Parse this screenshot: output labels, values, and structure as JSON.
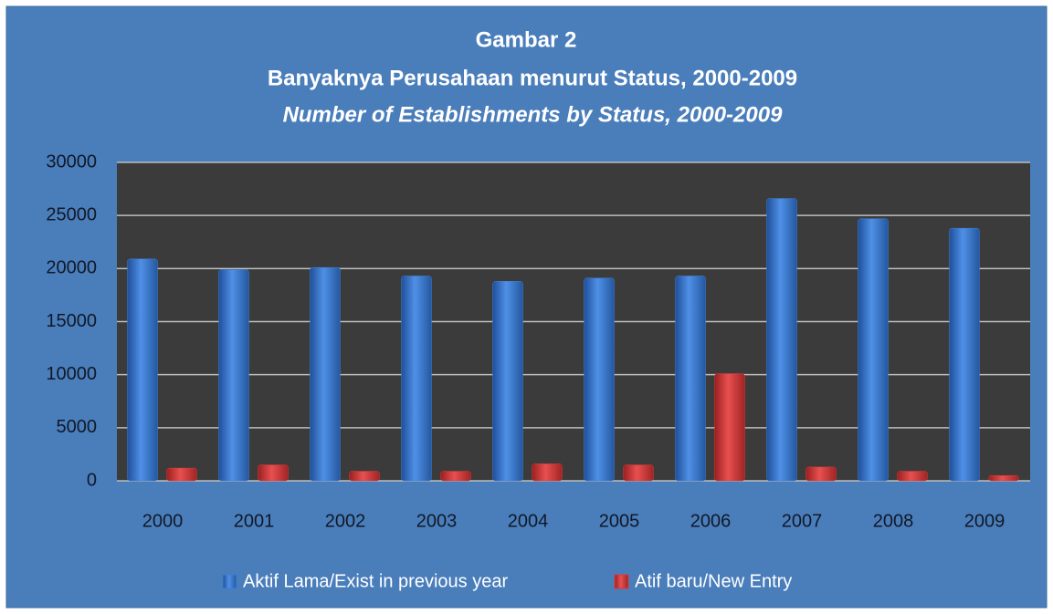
{
  "chart_data": {
    "type": "bar",
    "title": [
      "Gambar 2",
      "Banyaknya Perusahaan menurut Status, 2000-2009",
      "Number of Establishments by Status, 2000-2009"
    ],
    "categories": [
      "2000",
      "2001",
      "2002",
      "2003",
      "2004",
      "2005",
      "2006",
      "2007",
      "2008",
      "2009"
    ],
    "series": [
      {
        "name": "Aktif Lama/Exist in previous year",
        "color": "#3f7fd6",
        "values": [
          20900,
          19900,
          20100,
          19300,
          18800,
          19100,
          19300,
          26600,
          24700,
          23800
        ]
      },
      {
        "name": "Atif baru/New Entry",
        "color": "#d63a3a",
        "values": [
          1200,
          1500,
          900,
          900,
          1600,
          1500,
          10100,
          1300,
          900,
          500
        ]
      }
    ],
    "ylim": [
      0,
      30000
    ],
    "yticks": [
      0,
      5000,
      10000,
      15000,
      20000,
      25000,
      30000
    ],
    "grid": true,
    "legend": "bottom"
  }
}
